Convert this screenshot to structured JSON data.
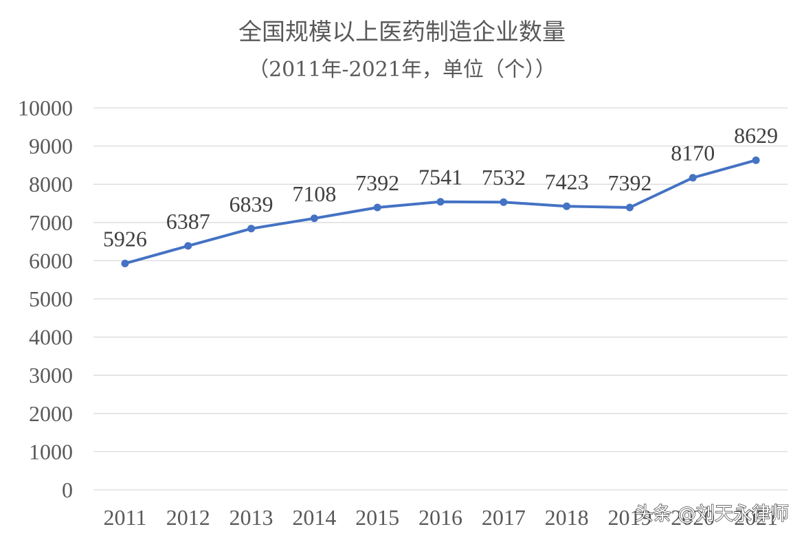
{
  "chart_data": {
    "type": "line",
    "title": "全国规模以上医药制造企业数量",
    "subtitle": "（2011年-2021年，单位（个））",
    "categories": [
      "2011",
      "2012",
      "2013",
      "2014",
      "2015",
      "2016",
      "2017",
      "2018",
      "2019",
      "2020",
      "2021"
    ],
    "values": [
      5926,
      6387,
      6839,
      7108,
      7392,
      7541,
      7532,
      7423,
      7392,
      8170,
      8629
    ],
    "ylim": [
      0,
      10000
    ],
    "yticks": [
      0,
      1000,
      2000,
      3000,
      4000,
      5000,
      6000,
      7000,
      8000,
      9000,
      10000
    ],
    "grid": true,
    "data_labels": true,
    "line_color": "#4472c4"
  },
  "watermark": "头条 @刘天永律师"
}
